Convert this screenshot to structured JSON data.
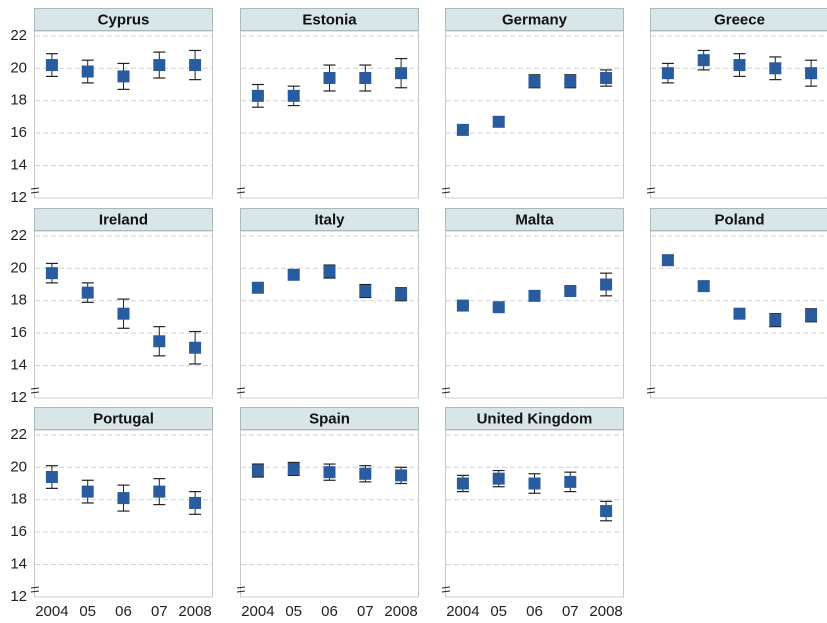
{
  "chart_data": {
    "type": "errorbar",
    "categories": [
      "2004",
      "05",
      "06",
      "07",
      "2008"
    ],
    "ylim": [
      12,
      22.3
    ],
    "yticks": [
      12,
      14,
      16,
      18,
      20,
      22
    ],
    "grid": true,
    "color": "#2a5b9e",
    "panels": [
      {
        "title": "Cyprus",
        "values": [
          20.2,
          19.8,
          19.5,
          20.2,
          20.2
        ],
        "errors": [
          0.7,
          0.7,
          0.8,
          0.8,
          0.9
        ]
      },
      {
        "title": "Estonia",
        "values": [
          18.3,
          18.3,
          19.4,
          19.4,
          19.7
        ],
        "errors": [
          0.7,
          0.6,
          0.8,
          0.8,
          0.9
        ]
      },
      {
        "title": "Germany",
        "values": [
          16.2,
          16.7,
          19.2,
          19.2,
          19.4
        ],
        "errors": [
          0.3,
          0.3,
          0.4,
          0.4,
          0.5
        ]
      },
      {
        "title": "Greece",
        "values": [
          19.7,
          20.5,
          20.2,
          20.0,
          19.7
        ],
        "errors": [
          0.6,
          0.6,
          0.7,
          0.7,
          0.8
        ]
      },
      {
        "title": "Ireland",
        "values": [
          19.7,
          18.5,
          17.2,
          15.5,
          15.1
        ],
        "errors": [
          0.6,
          0.6,
          0.9,
          0.9,
          1.0
        ]
      },
      {
        "title": "Italy",
        "values": [
          18.8,
          19.6,
          19.8,
          18.6,
          18.4
        ],
        "errors": [
          0.3,
          0.3,
          0.4,
          0.4,
          0.4
        ]
      },
      {
        "title": "Malta",
        "values": [
          17.7,
          17.6,
          18.3,
          18.6,
          19.0
        ],
        "errors": [
          0.1,
          0.1,
          0.1,
          0.2,
          0.7
        ]
      },
      {
        "title": "Poland",
        "values": [
          20.5,
          18.9,
          17.2,
          16.8,
          17.1
        ],
        "errors": [
          0.3,
          0.3,
          0.3,
          0.4,
          0.4
        ]
      },
      {
        "title": "Portugal",
        "values": [
          19.4,
          18.5,
          18.1,
          18.5,
          17.8
        ],
        "errors": [
          0.7,
          0.7,
          0.8,
          0.8,
          0.7
        ]
      },
      {
        "title": "Spain",
        "values": [
          19.8,
          19.9,
          19.7,
          19.6,
          19.5
        ],
        "errors": [
          0.4,
          0.4,
          0.5,
          0.5,
          0.5
        ]
      },
      {
        "title": "United Kingdom",
        "values": [
          19.0,
          19.3,
          19.0,
          19.1,
          17.3
        ],
        "errors": [
          0.5,
          0.5,
          0.6,
          0.6,
          0.6
        ]
      }
    ]
  }
}
